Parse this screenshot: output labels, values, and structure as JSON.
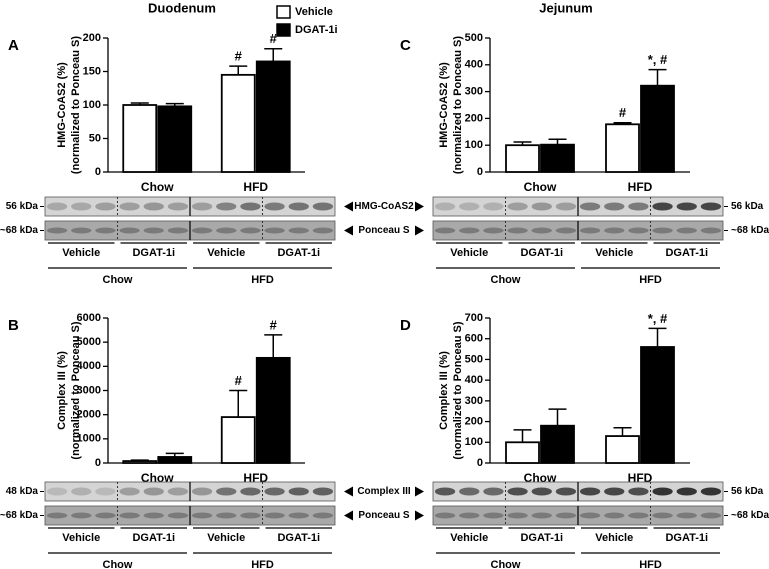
{
  "columns": [
    "Duodenum",
    "Jejunum"
  ],
  "blot_labels": [
    [
      "HMG-CoAS2",
      "Ponceau S"
    ],
    [
      "Complex III",
      "Ponceau S"
    ]
  ],
  "chart_data": [
    {
      "type": "bar",
      "panel": "A",
      "ylabel": [
        "HMG-CoAS2 (%)",
        "(normalized to Ponceau S)"
      ],
      "categories": [
        "Chow",
        "HFD"
      ],
      "ylim": [
        0,
        200
      ],
      "yticks": [
        0,
        50,
        100,
        150,
        200
      ],
      "series": [
        {
          "name": "Vehicle",
          "color": "#ffffff",
          "values": [
            100,
            145
          ],
          "errors": [
            3,
            13
          ],
          "annotations": [
            null,
            "#"
          ]
        },
        {
          "name": "DGAT-1i",
          "color": "#000000",
          "values": [
            98,
            165
          ],
          "errors": [
            4,
            19
          ],
          "annotations": [
            null,
            "#"
          ]
        }
      ],
      "blot": {
        "kda": [
          "56 kDa",
          "~68 kDa"
        ],
        "lanes": [
          "Vehicle",
          "DGAT-1i",
          "Vehicle",
          "DGAT-1i"
        ],
        "groups": [
          "Chow",
          "HFD"
        ]
      }
    },
    {
      "type": "bar",
      "panel": "B",
      "ylabel": [
        "Complex III (%)",
        "(normalized to Ponceau S)"
      ],
      "categories": [
        "Chow",
        "HFD"
      ],
      "ylim": [
        0,
        6000
      ],
      "yticks": [
        0,
        1000,
        2000,
        3000,
        4000,
        5000,
        6000
      ],
      "series": [
        {
          "color": "#ffffff",
          "values": [
            80,
            1900
          ],
          "errors": [
            40,
            1100
          ],
          "annotations": [
            null,
            "#"
          ]
        },
        {
          "color": "#000000",
          "values": [
            250,
            4350
          ],
          "errors": [
            150,
            950
          ],
          "annotations": [
            null,
            "#"
          ]
        }
      ],
      "blot": {
        "kda": [
          "48 kDa",
          "~68 kDa"
        ],
        "lanes": [
          "Vehicle",
          "DGAT-1i",
          "Vehicle",
          "DGAT-1i"
        ],
        "groups": [
          "Chow",
          "HFD"
        ]
      }
    },
    {
      "type": "bar",
      "panel": "C",
      "ylabel": [
        "HMG-CoAS2 (%)",
        "(normalized to Ponceau S)"
      ],
      "categories": [
        "Chow",
        "HFD"
      ],
      "ylim": [
        0,
        500
      ],
      "yticks": [
        0,
        100,
        200,
        300,
        400,
        500
      ],
      "series": [
        {
          "color": "#ffffff",
          "values": [
            100,
            178
          ],
          "errors": [
            12,
            6
          ],
          "annotations": [
            null,
            "#"
          ]
        },
        {
          "color": "#000000",
          "values": [
            102,
            322
          ],
          "errors": [
            20,
            60
          ],
          "annotations": [
            null,
            "*, #"
          ]
        }
      ],
      "blot": {
        "kda": [
          "56 kDa",
          "~68 kDa"
        ],
        "lanes": [
          "Vehicle",
          "DGAT-1i",
          "Vehicle",
          "DGAT-1i"
        ],
        "groups": [
          "Chow",
          "HFD"
        ]
      }
    },
    {
      "type": "bar",
      "panel": "D",
      "ylabel": [
        "Complex III (%)",
        "(normalized to Ponceau S)"
      ],
      "categories": [
        "Chow",
        "HFD"
      ],
      "ylim": [
        0,
        700
      ],
      "yticks": [
        0,
        100,
        200,
        300,
        400,
        500,
        600,
        700
      ],
      "series": [
        {
          "color": "#ffffff",
          "values": [
            100,
            130
          ],
          "errors": [
            60,
            40
          ],
          "annotations": [
            null,
            null
          ]
        },
        {
          "color": "#000000",
          "values": [
            180,
            560
          ],
          "errors": [
            80,
            90
          ],
          "annotations": [
            null,
            "*, #"
          ]
        }
      ],
      "blot": {
        "kda": [
          "56 kDa",
          "~68 kDa"
        ],
        "lanes": [
          "Vehicle",
          "DGAT-1i",
          "Vehicle",
          "DGAT-1i"
        ],
        "groups": [
          "Chow",
          "HFD"
        ]
      }
    }
  ]
}
